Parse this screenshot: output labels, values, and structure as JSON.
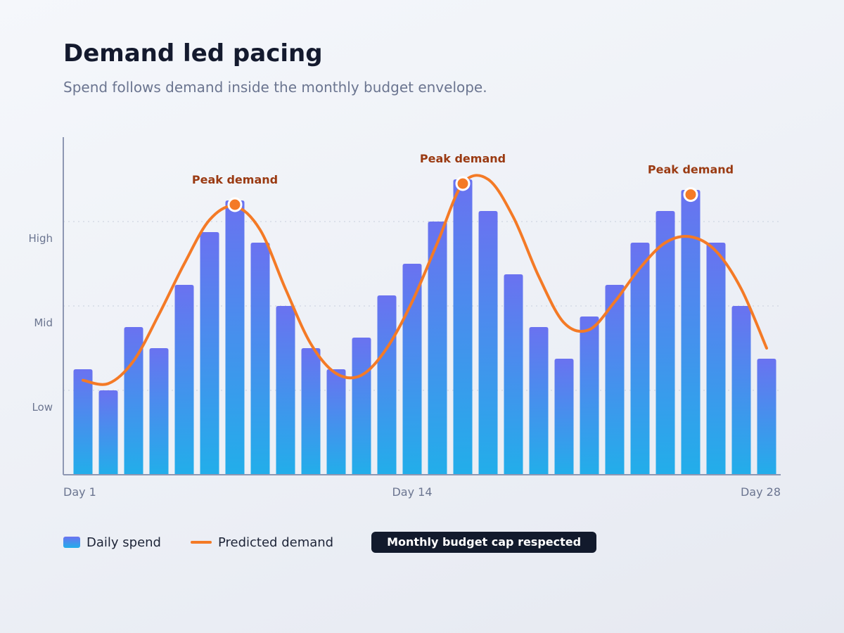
{
  "title": "Demand led pacing",
  "subtitle": "Spend follows demand inside the monthly budget envelope.",
  "legend": {
    "spend_label": "Daily spend",
    "demand_label": "Predicted demand",
    "badge_label": "Monthly budget cap respected"
  },
  "colors": {
    "bar_top": "#6a72f0",
    "bar_bottom": "#22aeea",
    "demand_line": "#f47a26",
    "peak_label": "#9a3a12",
    "axis": "#8e97b3",
    "grid": "#cfd5e2",
    "badge_bg": "#121a2c"
  },
  "chart_data": {
    "type": "bar",
    "x": [
      1,
      2,
      3,
      4,
      5,
      6,
      7,
      8,
      9,
      10,
      11,
      12,
      13,
      14,
      15,
      16,
      17,
      18,
      19,
      20,
      21,
      22,
      23,
      24,
      25,
      26,
      27,
      28
    ],
    "x_tick_labels": [
      "Day 1",
      "Day 14",
      "Day 28"
    ],
    "x_tick_positions": [
      1,
      14,
      28
    ],
    "y_tick_labels": [
      "Low",
      "Mid",
      "High"
    ],
    "y_tick_values": [
      0.8,
      1.8,
      2.8
    ],
    "gridlines": [
      1.0,
      2.0,
      3.0
    ],
    "ylim": [
      0,
      4
    ],
    "grid": true,
    "legend_position": "bottom-left",
    "series": [
      {
        "name": "Daily spend",
        "type": "bar",
        "values": [
          1.25,
          1.0,
          1.75,
          1.5,
          2.25,
          2.875,
          3.25,
          2.75,
          2.0,
          1.5,
          1.25,
          1.625,
          2.125,
          2.5,
          3.0,
          3.5,
          3.125,
          2.375,
          1.75,
          1.375,
          1.875,
          2.25,
          2.75,
          3.125,
          3.375,
          2.75,
          2.0,
          1.375
        ]
      },
      {
        "name": "Predicted demand",
        "type": "line",
        "values": [
          1.12,
          1.08,
          1.35,
          1.9,
          2.5,
          3.02,
          3.18,
          2.9,
          2.2,
          1.55,
          1.2,
          1.18,
          1.5,
          2.05,
          2.75,
          3.45,
          3.5,
          3.05,
          2.35,
          1.8,
          1.72,
          2.05,
          2.45,
          2.75,
          2.82,
          2.65,
          2.2,
          1.5
        ]
      }
    ],
    "annotations": [
      {
        "label": "Peak demand",
        "x": 7,
        "y": 3.2
      },
      {
        "label": "Peak demand",
        "x": 16,
        "y": 3.45
      },
      {
        "label": "Peak demand",
        "x": 25,
        "y": 3.32
      }
    ]
  }
}
